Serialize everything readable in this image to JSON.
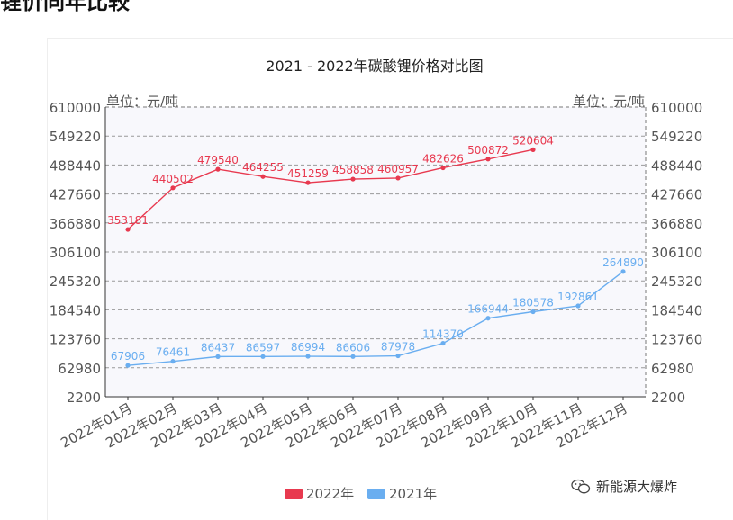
{
  "page": {
    "heading": "锂价同年比较"
  },
  "watermark": {
    "text": "新能源大爆炸",
    "icon": "wechat-icon"
  },
  "chart_data": {
    "type": "line",
    "title": "2021 - 2022年碳酸锂价格对比图",
    "unit_left": "单位：元/吨",
    "unit_right": "单位：元/吨",
    "categories": [
      "2022年01月",
      "2022年02月",
      "2022年03月",
      "2022年04月",
      "2022年05月",
      "2022年06月",
      "2022年07月",
      "2022年08月",
      "2022年09月",
      "2022年10月",
      "2022年11月",
      "2022年12月"
    ],
    "series": [
      {
        "name": "2022年",
        "color": "#e8394f",
        "values": [
          353181,
          440502,
          479540,
          464255,
          451259,
          458858,
          460957,
          482626,
          500872,
          520604,
          null,
          null
        ]
      },
      {
        "name": "2021年",
        "color": "#6aaef0",
        "values": [
          67906,
          76461,
          86437,
          86597,
          86994,
          86606,
          87978,
          114370,
          166944,
          180578,
          192861,
          264890
        ]
      }
    ],
    "yticks": [
      2200,
      62980,
      123760,
      184540,
      245320,
      306100,
      366880,
      427660,
      488440,
      549220,
      610000
    ],
    "ylim": [
      2200,
      610000
    ],
    "grid": true,
    "legend_position": "bottom-center"
  }
}
